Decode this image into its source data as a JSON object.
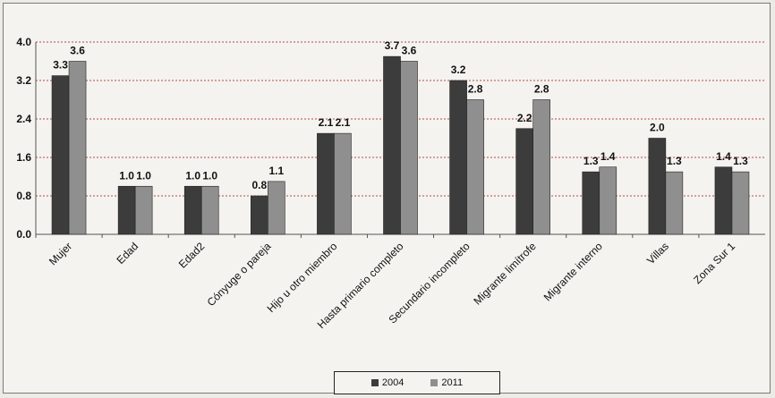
{
  "chart_data": {
    "type": "bar",
    "categories": [
      "Mujer",
      "Edad",
      "Edad2",
      "Cónyuge o pareja",
      "Hijo u otro miembro",
      "Hasta primario completo",
      "Secundario incompleto",
      "Migrante limítrofe",
      "Migrante interno",
      "Villas",
      "Zona Sur 1"
    ],
    "series": [
      {
        "name": "2004",
        "color": "#3c3c3c",
        "values": [
          3.3,
          1.0,
          1.0,
          0.8,
          2.1,
          3.7,
          3.2,
          2.2,
          1.3,
          2.0,
          1.4
        ]
      },
      {
        "name": "2011",
        "color": "#8f8f8f",
        "values": [
          3.6,
          1.0,
          1.0,
          1.1,
          2.1,
          3.6,
          2.8,
          2.8,
          1.4,
          1.3,
          1.3
        ]
      }
    ],
    "data_labels": [
      [
        "3.3",
        "1.0",
        "1.0",
        "0.8",
        "2.1",
        "3.7",
        "3.2",
        "2.2",
        "1.3",
        "2.0",
        "1.4"
      ],
      [
        "3.6",
        "1.0",
        "1.0",
        "1.1",
        "2.1",
        "3.6",
        "2.8",
        "2.8",
        "1.4",
        "1.3",
        "1.3"
      ]
    ],
    "yticks": [
      "0.0",
      "0.8",
      "1.6",
      "2.4",
      "3.2",
      "4.0"
    ],
    "ylim": [
      0,
      4.0
    ],
    "grid": true,
    "grid_color": "#b84a4a",
    "legend_position": "bottom-center"
  }
}
